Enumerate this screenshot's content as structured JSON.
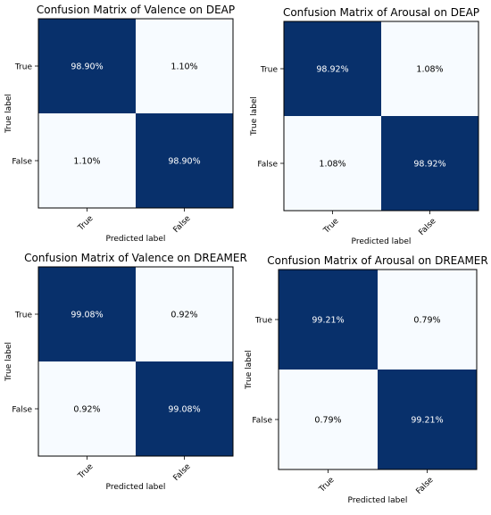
{
  "colors": {
    "high": "#08306b",
    "low": "#f7fbff",
    "text_on_dark": "#ffffff",
    "text_on_light": "#000000"
  },
  "chart_data": [
    {
      "type": "heatmap",
      "title": "Confusion Matrix of Valence on DEAP",
      "xlabel": "Predicted label",
      "ylabel": "True label",
      "row_labels": [
        "True",
        "False"
      ],
      "col_labels": [
        "True",
        "False"
      ],
      "values": [
        [
          98.9,
          1.1
        ],
        [
          1.1,
          98.9
        ]
      ],
      "cell_labels": [
        [
          "98.90%",
          "1.10%"
        ],
        [
          "1.10%",
          "98.90%"
        ]
      ],
      "colormap": "Blues"
    },
    {
      "type": "heatmap",
      "title": "Confusion Matrix of Arousal on DEAP",
      "xlabel": "Predicted label",
      "ylabel": "True label",
      "row_labels": [
        "True",
        "False"
      ],
      "col_labels": [
        "True",
        "False"
      ],
      "values": [
        [
          98.92,
          1.08
        ],
        [
          1.08,
          98.92
        ]
      ],
      "cell_labels": [
        [
          "98.92%",
          "1.08%"
        ],
        [
          "1.08%",
          "98.92%"
        ]
      ],
      "colormap": "Blues"
    },
    {
      "type": "heatmap",
      "title": "Confusion Matrix of Valence on DREAMER",
      "xlabel": "Predicted label",
      "ylabel": "True label",
      "row_labels": [
        "True",
        "False"
      ],
      "col_labels": [
        "True",
        "False"
      ],
      "values": [
        [
          99.08,
          0.92
        ],
        [
          0.92,
          99.08
        ]
      ],
      "cell_labels": [
        [
          "99.08%",
          "0.92%"
        ],
        [
          "0.92%",
          "99.08%"
        ]
      ],
      "colormap": "Blues"
    },
    {
      "type": "heatmap",
      "title": "Confusion Matrix of Arousal on DREAMER",
      "xlabel": "Predicted label",
      "ylabel": "True label",
      "row_labels": [
        "True",
        "False"
      ],
      "col_labels": [
        "True",
        "False"
      ],
      "values": [
        [
          99.21,
          0.79
        ],
        [
          0.79,
          99.21
        ]
      ],
      "cell_labels": [
        [
          "99.21%",
          "0.79%"
        ],
        [
          "0.79%",
          "99.21%"
        ]
      ],
      "colormap": "Blues"
    }
  ]
}
